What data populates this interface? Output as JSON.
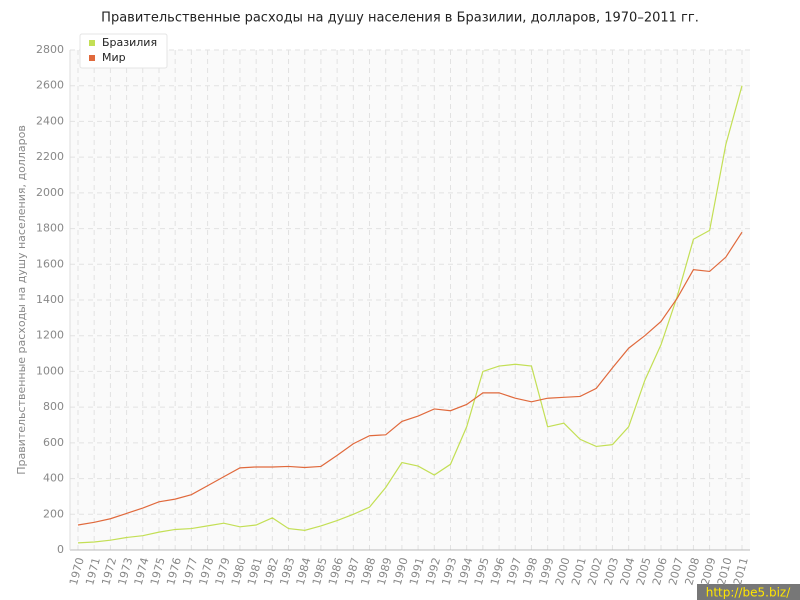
{
  "chart_data": {
    "type": "line",
    "title": "Правительственные расходы на душу населения в Бразилии, долларов, 1970–2011 гг.",
    "y_label": "Правительственные расходы на душу населения, долларов",
    "watermark": "http://be5.biz/",
    "x": [
      1970,
      1971,
      1972,
      1973,
      1974,
      1975,
      1976,
      1977,
      1978,
      1979,
      1980,
      1981,
      1982,
      1983,
      1984,
      1985,
      1986,
      1987,
      1988,
      1989,
      1990,
      1991,
      1992,
      1993,
      1994,
      1995,
      1996,
      1997,
      1998,
      1999,
      2000,
      2001,
      2002,
      2003,
      2004,
      2005,
      2006,
      2007,
      2008,
      2009,
      2010,
      2011
    ],
    "xlim": [
      1970,
      2011
    ],
    "ylim": [
      0,
      2800
    ],
    "yticks": [
      0,
      200,
      400,
      600,
      800,
      1000,
      1200,
      1400,
      1600,
      1800,
      2000,
      2200,
      2400,
      2600,
      2800
    ],
    "grid": true,
    "legend": "top-left",
    "series": [
      {
        "name": "Бразилия",
        "color": "#c3df55",
        "values": [
          40,
          45,
          55,
          70,
          80,
          100,
          115,
          120,
          135,
          150,
          130,
          140,
          180,
          120,
          110,
          135,
          165,
          200,
          240,
          350,
          490,
          470,
          420,
          480,
          690,
          1000,
          1030,
          1040,
          1030,
          690,
          710,
          620,
          580,
          590,
          690,
          950,
          1150,
          1420,
          1740,
          1790,
          2270,
          2600
        ]
      },
      {
        "name": "Мир",
        "color": "#e0693c",
        "values": [
          140,
          155,
          175,
          205,
          235,
          270,
          285,
          310,
          360,
          410,
          460,
          465,
          465,
          468,
          462,
          468,
          530,
          595,
          640,
          645,
          720,
          750,
          790,
          780,
          815,
          880,
          880,
          850,
          830,
          850,
          855,
          860,
          905,
          1020,
          1130,
          1200,
          1280,
          1410,
          1570,
          1560,
          1640,
          1780
        ]
      }
    ]
  }
}
